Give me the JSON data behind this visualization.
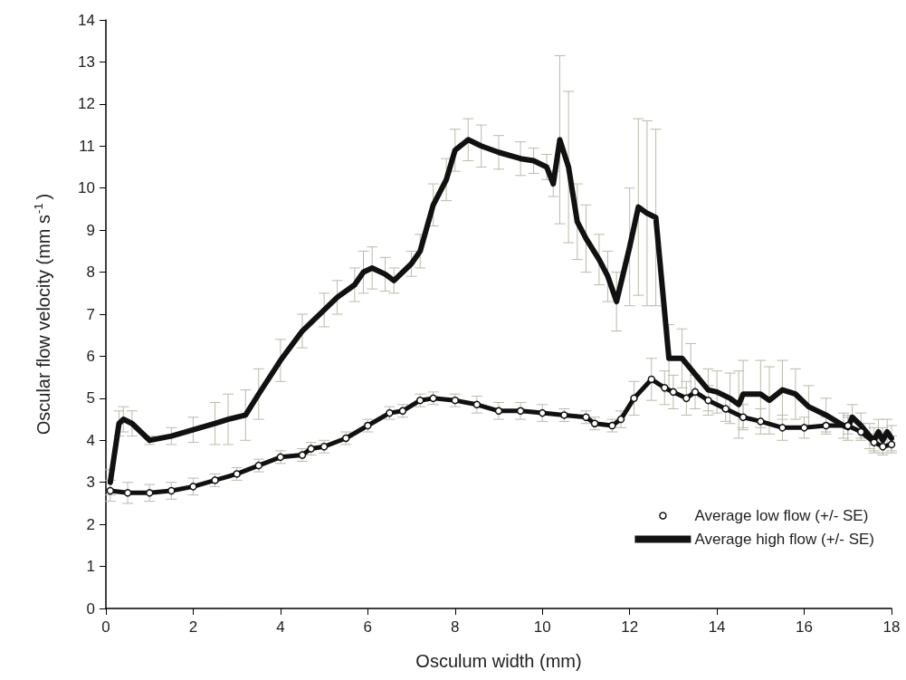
{
  "chart_data": {
    "type": "line",
    "xlabel": "Osculum width (mm)",
    "ylabel": "Oscular flow velocity (mm s$^{-1}$)",
    "xlim": [
      0,
      18
    ],
    "xticks": [
      0,
      2,
      4,
      6,
      8,
      10,
      12,
      14,
      16,
      18
    ],
    "ylim": [
      0,
      14
    ],
    "yticks": [
      0,
      1,
      2,
      3,
      4,
      5,
      6,
      7,
      8,
      9,
      10,
      11,
      12,
      13,
      14
    ],
    "grid": false,
    "legend": "bottom right",
    "line_style": "solid",
    "series": [
      {
        "name": "Average low flow (+/- SE)",
        "color": "#111111",
        "marker": "circle",
        "x": [
          0.1,
          0.5,
          1.0,
          1.5,
          2.0,
          2.5,
          3.0,
          3.5,
          4.0,
          4.5,
          4.7,
          5.0,
          5.5,
          6.0,
          6.5,
          6.8,
          7.2,
          7.5,
          8.0,
          8.5,
          9.0,
          9.5,
          10.0,
          10.5,
          11.0,
          11.2,
          11.6,
          11.8,
          12.1,
          12.5,
          12.8,
          13.0,
          13.3,
          13.5,
          13.8,
          14.2,
          14.6,
          15.0,
          15.5,
          16.0,
          16.5,
          17.0,
          17.3,
          17.6,
          17.8,
          18.0
        ],
        "values": [
          2.8,
          2.75,
          2.75,
          2.8,
          2.9,
          3.05,
          3.2,
          3.4,
          3.6,
          3.65,
          3.8,
          3.85,
          4.05,
          4.35,
          4.65,
          4.7,
          4.95,
          5.0,
          4.95,
          4.85,
          4.7,
          4.7,
          4.65,
          4.6,
          4.55,
          4.4,
          4.35,
          4.5,
          5.0,
          5.45,
          5.25,
          5.15,
          5.0,
          5.15,
          4.95,
          4.75,
          4.55,
          4.45,
          4.3,
          4.3,
          4.35,
          4.35,
          4.2,
          3.95,
          3.85,
          3.9
        ],
        "errors": [
          0.25,
          0.25,
          0.2,
          0.2,
          0.2,
          0.15,
          0.15,
          0.15,
          0.15,
          0.15,
          0.15,
          0.15,
          0.15,
          0.15,
          0.15,
          0.15,
          0.15,
          0.15,
          0.15,
          0.2,
          0.2,
          0.2,
          0.2,
          0.15,
          0.15,
          0.15,
          0.15,
          0.2,
          0.4,
          0.5,
          0.4,
          0.4,
          0.4,
          0.4,
          0.35,
          0.3,
          0.3,
          0.3,
          0.3,
          0.25,
          0.2,
          0.2,
          0.2,
          0.2,
          0.2,
          0.2
        ]
      },
      {
        "name": "Average high flow (+/- SE)",
        "color": "#111111",
        "marker": "none",
        "x": [
          0.1,
          0.3,
          0.4,
          0.6,
          1.0,
          1.5,
          2.0,
          2.5,
          2.8,
          3.2,
          3.5,
          4.0,
          4.5,
          5.0,
          5.3,
          5.7,
          5.9,
          6.1,
          6.4,
          6.6,
          7.0,
          7.2,
          7.5,
          7.8,
          8.0,
          8.3,
          8.6,
          9.0,
          9.5,
          9.8,
          10.1,
          10.25,
          10.4,
          10.6,
          10.8,
          11.0,
          11.3,
          11.5,
          11.7,
          12.0,
          12.2,
          12.4,
          12.6,
          12.9,
          13.2,
          13.4,
          13.8,
          14.0,
          14.3,
          14.5,
          14.6,
          15.0,
          15.2,
          15.5,
          15.8,
          16.1,
          16.5,
          16.9,
          17.0,
          17.1,
          17.3,
          17.5,
          17.6,
          17.7,
          17.8,
          17.9,
          18.0
        ],
        "values": [
          3.0,
          4.4,
          4.5,
          4.4,
          4.0,
          4.1,
          4.25,
          4.4,
          4.5,
          4.6,
          5.1,
          5.9,
          6.6,
          7.1,
          7.4,
          7.7,
          8.0,
          8.1,
          7.95,
          7.8,
          8.2,
          8.5,
          9.6,
          10.2,
          10.9,
          11.15,
          11.0,
          10.85,
          10.7,
          10.65,
          10.5,
          10.1,
          11.15,
          10.5,
          9.2,
          8.8,
          8.3,
          7.9,
          7.3,
          8.6,
          9.55,
          9.4,
          9.3,
          5.95,
          5.95,
          5.7,
          5.2,
          5.15,
          5.0,
          4.85,
          5.1,
          5.1,
          4.95,
          5.2,
          5.1,
          4.8,
          4.6,
          4.35,
          4.3,
          4.55,
          4.35,
          4.1,
          4.0,
          4.2,
          4.0,
          4.2,
          4.05
        ],
        "errors": [
          0.3,
          0.3,
          0.3,
          0.3,
          0.1,
          0.2,
          0.3,
          0.5,
          0.6,
          0.6,
          0.6,
          0.5,
          0.4,
          0.4,
          0.4,
          0.4,
          0.5,
          0.5,
          0.4,
          0.3,
          0.3,
          0.4,
          0.5,
          0.5,
          0.5,
          0.5,
          0.5,
          0.4,
          0.4,
          0.3,
          0.3,
          0.3,
          2.0,
          1.8,
          0.9,
          0.8,
          0.6,
          0.6,
          0.7,
          1.4,
          2.1,
          2.2,
          2.1,
          0.8,
          0.7,
          0.6,
          0.5,
          0.5,
          0.6,
          0.8,
          0.8,
          0.8,
          0.8,
          0.7,
          0.6,
          0.5,
          0.4,
          0.3,
          0.3,
          0.3,
          0.3,
          0.3,
          0.3,
          0.3,
          0.3,
          0.3,
          0.3
        ]
      }
    ]
  }
}
